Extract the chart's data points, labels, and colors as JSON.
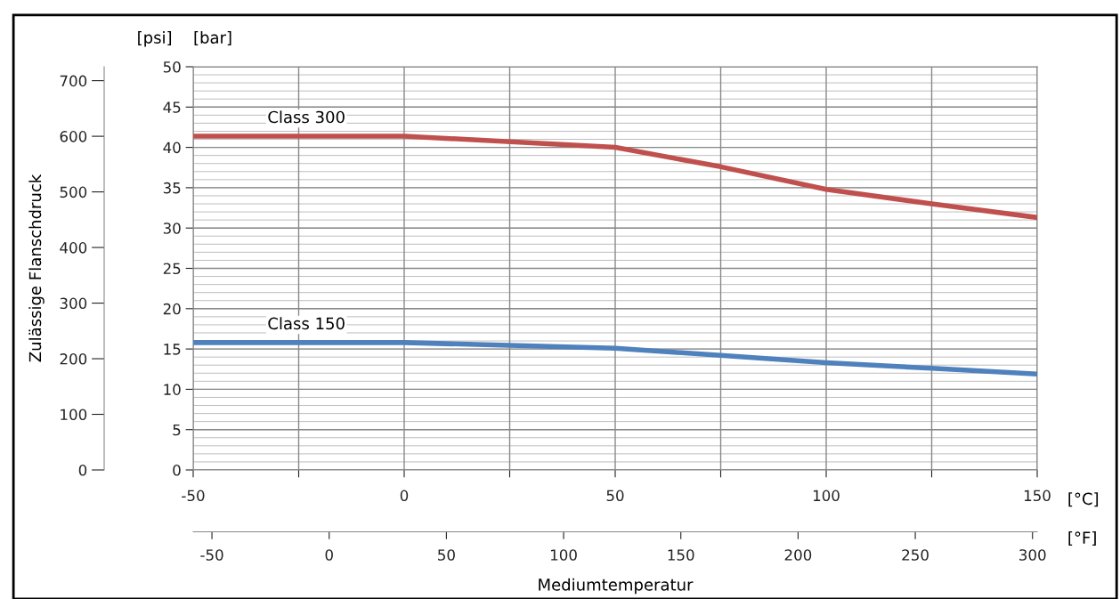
{
  "chart_data": {
    "type": "line",
    "y2label": "Zulässige Flanschdruck",
    "x2label": "Mediumtemperatur",
    "annotations": [
      "[psi]",
      "[bar]",
      "[°C]",
      "[°F]"
    ],
    "x": [
      -50,
      0,
      50,
      75,
      100,
      125,
      150
    ],
    "series": [
      {
        "name": "Class 300",
        "color": "#c0504d",
        "values": [
          41.4,
          41.4,
          40.0,
          37.6,
          34.8,
          33.0,
          31.3
        ]
      },
      {
        "name": "Class 150",
        "color": "#4f81bd",
        "values": [
          15.8,
          15.8,
          15.1,
          14.2,
          13.3,
          12.6,
          11.9
        ]
      }
    ],
    "xlim": [
      -50,
      150
    ],
    "xticks": [
      -50,
      {
        "value": -25,
        "label": null
      },
      0,
      {
        "value": 25,
        "label": null
      },
      50,
      {
        "value": 75,
        "label": null
      },
      100,
      {
        "value": 125,
        "label": null
      },
      150
    ],
    "ylim": [
      0,
      50
    ],
    "yticks": [
      0,
      5,
      10,
      15,
      20,
      25,
      30,
      35,
      40,
      45,
      50
    ],
    "y2lim": [
      0,
      725
    ],
    "y2ticks": [
      0,
      100,
      200,
      300,
      400,
      500,
      600,
      700
    ],
    "x2lim": [
      -58,
      302
    ],
    "x2ticks": [
      -50,
      0,
      50,
      100,
      150,
      200,
      250,
      300
    ],
    "grid": true,
    "legend": false,
    "marker": "none",
    "line_style": "solid"
  }
}
